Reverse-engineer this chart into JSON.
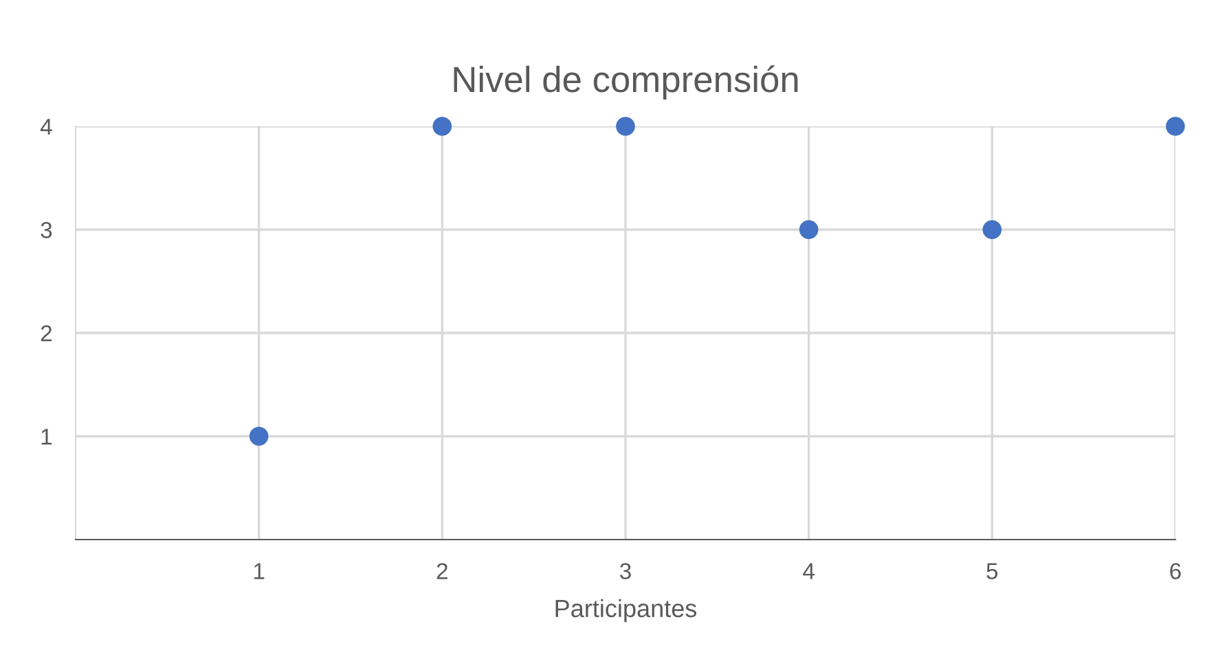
{
  "chart_data": {
    "type": "scatter",
    "title": "Nivel de comprensión",
    "xlabel": "Participantes",
    "x": [
      1,
      2,
      3,
      4,
      5,
      6
    ],
    "series": [
      {
        "color": "#4472c4",
        "values": [
          1,
          4,
          4,
          3,
          3,
          4
        ]
      }
    ],
    "xlim": [
      0,
      6
    ],
    "xticks": [
      1,
      2,
      3,
      4,
      5,
      6
    ],
    "ylim": [
      0,
      4
    ],
    "yticks": [
      1,
      2,
      3,
      4
    ],
    "grid": true,
    "marker": "circle"
  }
}
